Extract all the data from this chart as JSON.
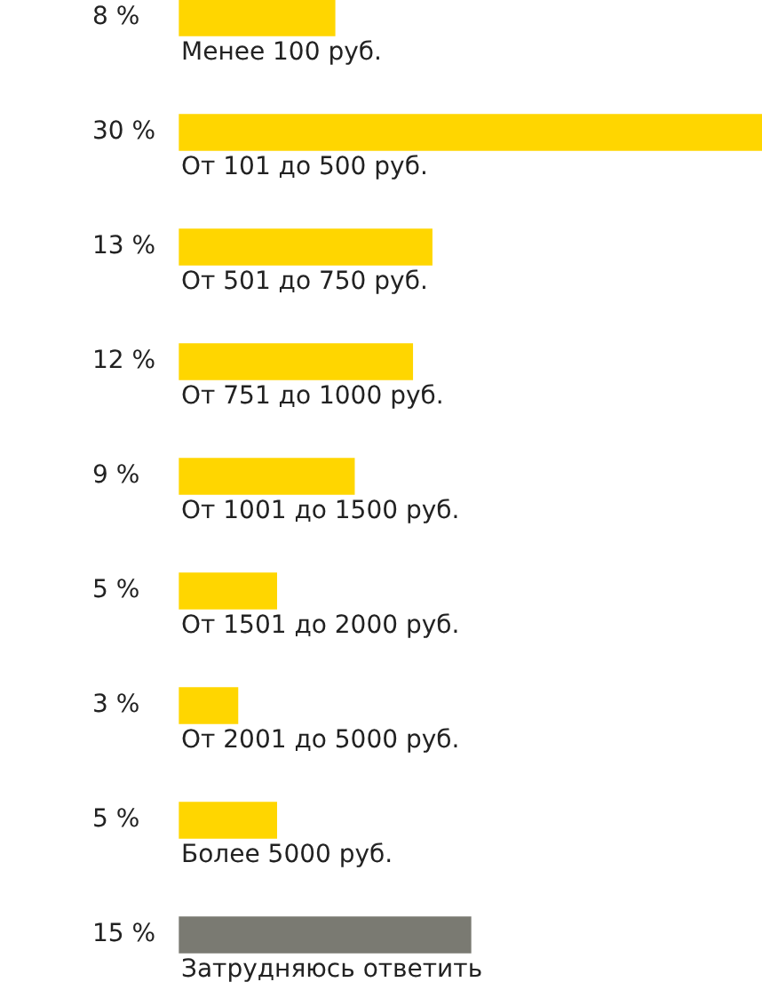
{
  "chart_data": {
    "type": "bar",
    "orientation": "horizontal",
    "categories": [
      "Менее 100 руб.",
      "От 101 до 500 руб.",
      "От 501 до 750 руб.",
      "От 751 до 1000 руб.",
      "От 1001 до 1500 руб.",
      "От 1501 до 2000 руб.",
      "От 2001 до 5000 руб.",
      "Более 5000 руб.",
      "Затрудняюсь ответить"
    ],
    "values": [
      8,
      30,
      13,
      12,
      9,
      5,
      3,
      5,
      15
    ],
    "value_labels": [
      "8 %",
      "30 %",
      "13 %",
      "12 %",
      "9 %",
      "5 %",
      "3 %",
      "5 %",
      "15 %"
    ],
    "colors": [
      "#ffd600",
      "#ffd600",
      "#ffd600",
      "#ffd600",
      "#ffd600",
      "#ffd600",
      "#ffd600",
      "#ffd600",
      "#7a7a72"
    ],
    "legend": false,
    "tick_labels": false
  }
}
